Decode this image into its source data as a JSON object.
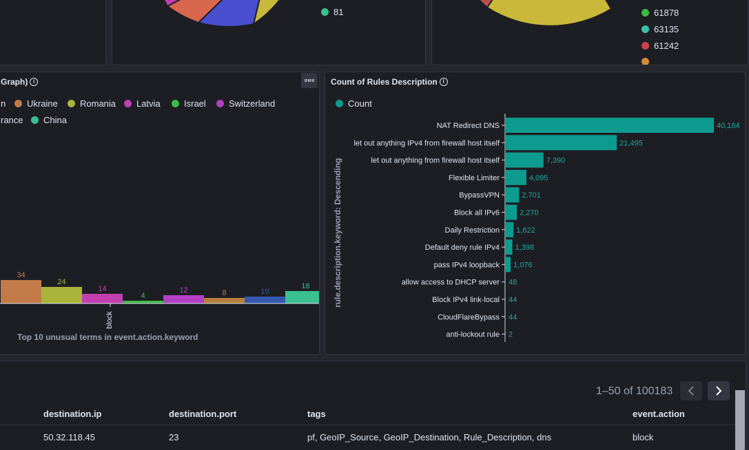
{
  "top_left_pie": {
    "legend": [
      {
        "label": "81",
        "color": "#3bbf91"
      }
    ]
  },
  "top_right_pie": {
    "legend": [
      {
        "label": "61878",
        "color": "#3dbb48"
      },
      {
        "label": "63135",
        "color": "#3cbfa8"
      },
      {
        "label": "61242",
        "color": "#d0404e"
      }
    ]
  },
  "country_panel": {
    "title": "Graph)",
    "menu_icon": "ellipsis-icon",
    "legend": [
      {
        "label": "n",
        "color": "#1d1e24"
      },
      {
        "label": "Ukraine",
        "color": "#c27b48"
      },
      {
        "label": "Romania",
        "color": "#a8b43a"
      },
      {
        "label": "Latvia",
        "color": "#c23fb0"
      },
      {
        "label": "Israel",
        "color": "#3dbb48"
      },
      {
        "label": "Switzerland",
        "color": "#b240c4"
      },
      {
        "label": "rance",
        "color": "#1d1e24"
      },
      {
        "label": "China",
        "color": "#3bbf91"
      }
    ],
    "x_tick": "block",
    "caption": "Top 10 unusual terms in event.action.keyword"
  },
  "chart_data": {
    "type": "bar",
    "title": "",
    "orientation": "vertical",
    "series": [
      {
        "name": "Ukraine",
        "value": 34,
        "color": "#c27b48"
      },
      {
        "name": "Romania",
        "value": 24,
        "color": "#a8b43a"
      },
      {
        "name": "Latvia",
        "value": 14,
        "color": "#c23fb0"
      },
      {
        "name": "Israel",
        "value": 4,
        "color": "#3dbb48"
      },
      {
        "name": "Switzerland",
        "value": 12,
        "color": "#b240c4"
      },
      {
        "name": "",
        "value": 8,
        "color": "#b57e3a"
      },
      {
        "name": "",
        "value": 10,
        "color": "#3557b0"
      },
      {
        "name": "China",
        "value": 18,
        "color": "#3bbf91"
      }
    ],
    "categories": [
      "block"
    ],
    "xlabel": "Top 10 unusual terms in event.action.keyword"
  },
  "rules_chart": {
    "title": "Count of Rules Description",
    "legend_label": "Count",
    "legend_color": "#0e9b8f",
    "ylabel": "rule.description.keyword: Descending",
    "max": 40184,
    "bars": [
      {
        "label": "NAT Redirect DNS",
        "value": 40184,
        "text": "40,184"
      },
      {
        "label": "let out anything IPv4 from firewall host itself",
        "value": 21495,
        "text": "21,495"
      },
      {
        "label": "let out anything from firewall host itself",
        "value": 7390,
        "text": "7,390"
      },
      {
        "label": "Flexible Limiter",
        "value": 4095,
        "text": "4,095"
      },
      {
        "label": "BypassVPN",
        "value": 2701,
        "text": "2,701"
      },
      {
        "label": "Block all IPv6",
        "value": 2270,
        "text": "2,270"
      },
      {
        "label": "Daily Restriction",
        "value": 1622,
        "text": "1,622"
      },
      {
        "label": "Default deny rule IPv4",
        "value": 1398,
        "text": "1,398"
      },
      {
        "label": "pass IPv4 loopback",
        "value": 1076,
        "text": "1,076"
      },
      {
        "label": "allow access to DHCP server",
        "value": 48,
        "text": "48"
      },
      {
        "label": "Block IPv4 link-local",
        "value": 44,
        "text": "44"
      },
      {
        "label": "CloudFlareBypass",
        "value": 44,
        "text": "44"
      },
      {
        "label": "anti-lockout rule",
        "value": 2,
        "text": "2"
      }
    ]
  },
  "table": {
    "pagination": "1–50 of 100183",
    "prev_icon": "chevron-left-icon",
    "next_icon": "chevron-right-icon",
    "columns": [
      "destination.ip",
      "destination.port",
      "tags",
      "event.action"
    ],
    "rows": [
      [
        "50.32.118.45",
        "23",
        "pf, GeoIP_Source, GeoIP_Destination, Rule_Description, dns",
        "block"
      ]
    ]
  }
}
